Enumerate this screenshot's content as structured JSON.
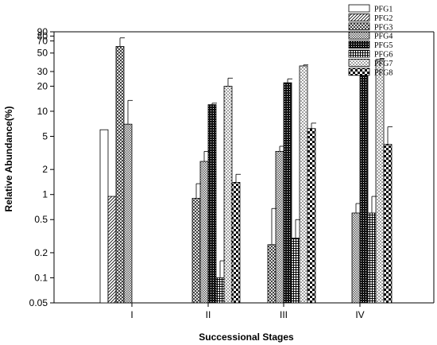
{
  "chart_data": {
    "type": "bar",
    "title": "",
    "xlabel": "Successional Stages",
    "ylabel": "Relative Abundance(%)",
    "yscale": "log",
    "ylim": [
      0.05,
      90
    ],
    "yticks": [
      "0.05",
      "0.1",
      "0.2",
      "0.5",
      "1",
      "2",
      "5",
      "10",
      "20",
      "30",
      "50",
      "70",
      "80",
      "90"
    ],
    "ytick_values": [
      0.05,
      0.1,
      0.2,
      0.5,
      1,
      2,
      5,
      10,
      20,
      30,
      50,
      70,
      80,
      90
    ],
    "categories": [
      "I",
      "II",
      "III",
      "IV"
    ],
    "legend_position": "top-right",
    "series": [
      {
        "name": "PFG1",
        "pattern": "blank",
        "values": [
          6,
          null,
          null,
          null
        ],
        "errors": [
          null,
          null,
          null,
          null
        ]
      },
      {
        "name": "PFG2",
        "pattern": "diagonal",
        "values": [
          0.95,
          null,
          null,
          null
        ],
        "errors": [
          null,
          null,
          null,
          null
        ]
      },
      {
        "name": "PFG3",
        "pattern": "crosshatch",
        "values": [
          60,
          0.9,
          0.25,
          null
        ],
        "errors": [
          76,
          1.35,
          0.68,
          null
        ]
      },
      {
        "name": "PFG4",
        "pattern": "dense-dots",
        "values": [
          7,
          2.5,
          3.3,
          0.6
        ],
        "errors": [
          13.5,
          3.3,
          3.8,
          0.78
        ]
      },
      {
        "name": "PFG5",
        "pattern": "dark-dots",
        "values": [
          null,
          12,
          22,
          29
        ],
        "errors": [
          null,
          12.5,
          24.5,
          30
        ]
      },
      {
        "name": "PFG6",
        "pattern": "grid",
        "values": [
          null,
          0.1,
          0.3,
          0.6
        ],
        "errors": [
          null,
          0.16,
          0.5,
          0.95
        ]
      },
      {
        "name": "PFG7",
        "pattern": "light-dots",
        "values": [
          null,
          20,
          35,
          42
        ],
        "errors": [
          null,
          25,
          36,
          43
        ]
      },
      {
        "name": "PFG8",
        "pattern": "checker",
        "values": [
          null,
          1.4,
          6.2,
          4
        ],
        "errors": [
          null,
          1.75,
          7.2,
          6.5
        ]
      }
    ]
  }
}
